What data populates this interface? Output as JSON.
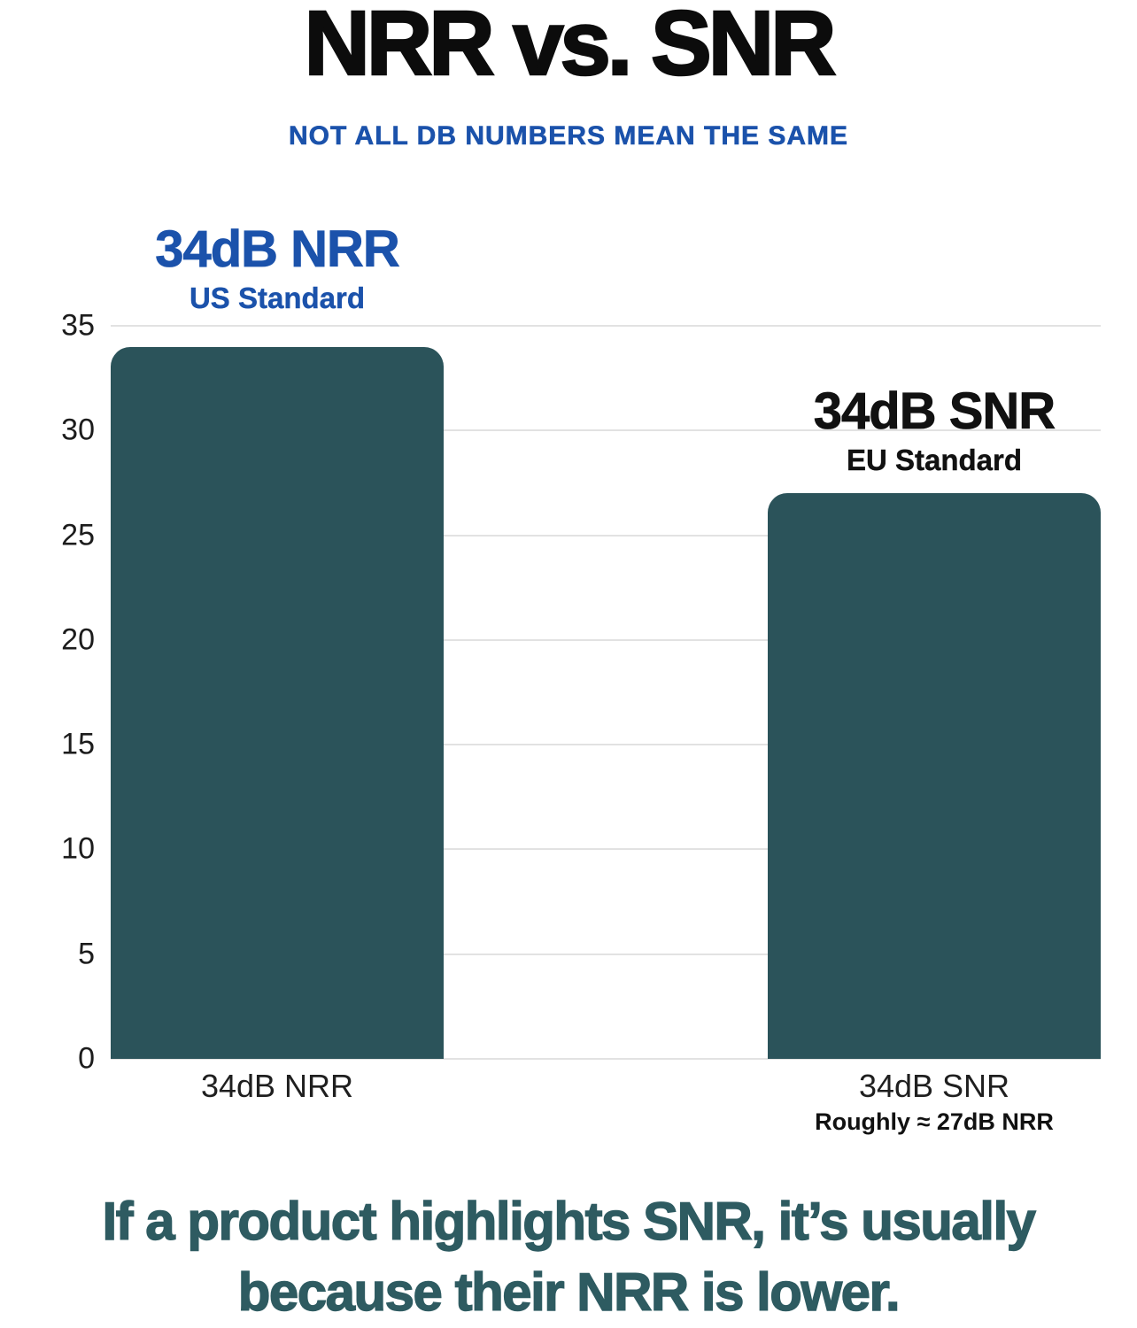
{
  "header": {
    "title": "NRR vs. SNR",
    "subtitle": "NOT ALL DB NUMBERS MEAN THE SAME"
  },
  "chart_data": {
    "type": "bar",
    "title": "NRR vs. SNR",
    "subtitle": "NOT ALL DB NUMBERS MEAN THE SAME",
    "categories": [
      "34dB NRR",
      "34dB SNR"
    ],
    "values": [
      34,
      27
    ],
    "ylim": [
      0,
      35
    ],
    "yticks": [
      0,
      5,
      10,
      15,
      20,
      25,
      30,
      35
    ],
    "grid": true,
    "legend": false,
    "bar_color": "#2b535a",
    "bars": [
      {
        "category": "34dB NRR",
        "value": 34,
        "annotation_heading": "34dB NRR",
        "annotation_subheading": "US Standard",
        "annotation_color": "#1b52ab",
        "x_label": "34dB NRR",
        "x_sublabel": ""
      },
      {
        "category": "34dB SNR",
        "value": 27,
        "annotation_heading": "34dB SNR",
        "annotation_subheading": "EU Standard",
        "annotation_color": "#111111",
        "x_label": "34dB SNR",
        "x_sublabel": "Roughly ≈ 27dB NRR"
      }
    ]
  },
  "footer": {
    "line1": "If a product highlights SNR, it’s usually",
    "line2": "because their NRR is lower."
  },
  "colors": {
    "bar": "#2b535a",
    "accent_blue": "#1b52ab",
    "footer_text": "#2e5b61",
    "gridline": "#e2e2e2",
    "axis_text": "#1c1c1c",
    "title_text": "#0c0c0c"
  }
}
